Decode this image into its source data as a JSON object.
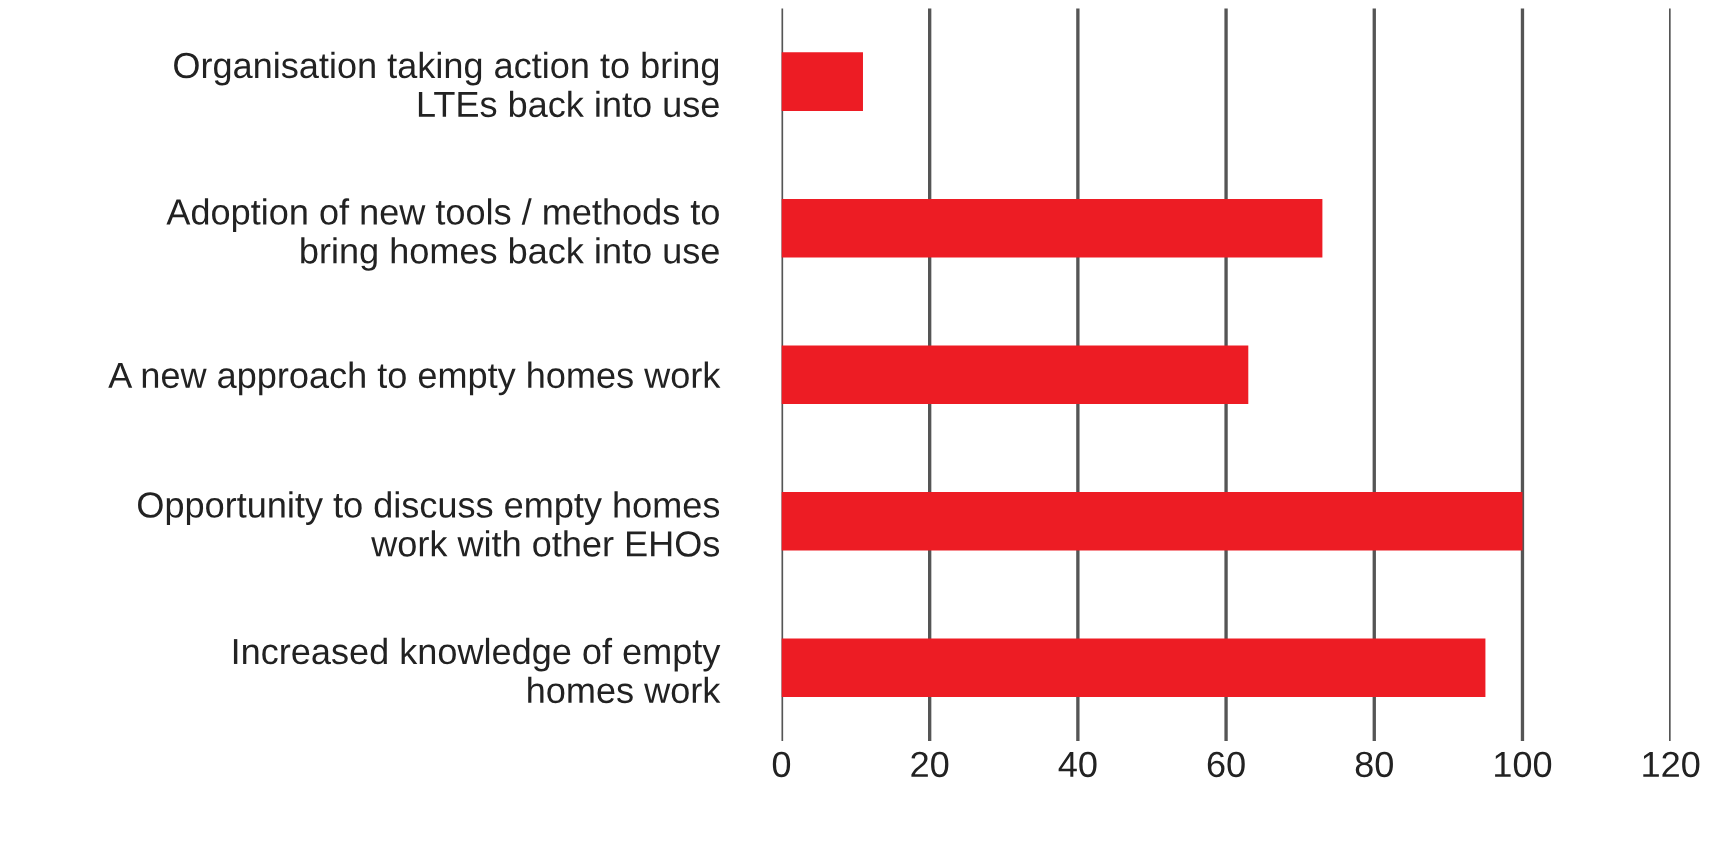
{
  "chart_data": {
    "type": "bar",
    "orientation": "horizontal",
    "categories": [
      "Organisation taking action to bring\nLTEs back into use",
      "Adoption of new tools / methods to\nbring homes back into use",
      "A new approach to empty homes work",
      "Opportunity to discuss empty homes\nwork with other EHOs",
      "Increased knowledge of empty\nhomes work"
    ],
    "values": [
      11,
      73,
      63,
      100,
      95
    ],
    "color": "#ed1c24",
    "xlim": [
      0,
      120
    ],
    "xticks": [
      0,
      20,
      40,
      60,
      80,
      100,
      120
    ],
    "grid": "x"
  }
}
